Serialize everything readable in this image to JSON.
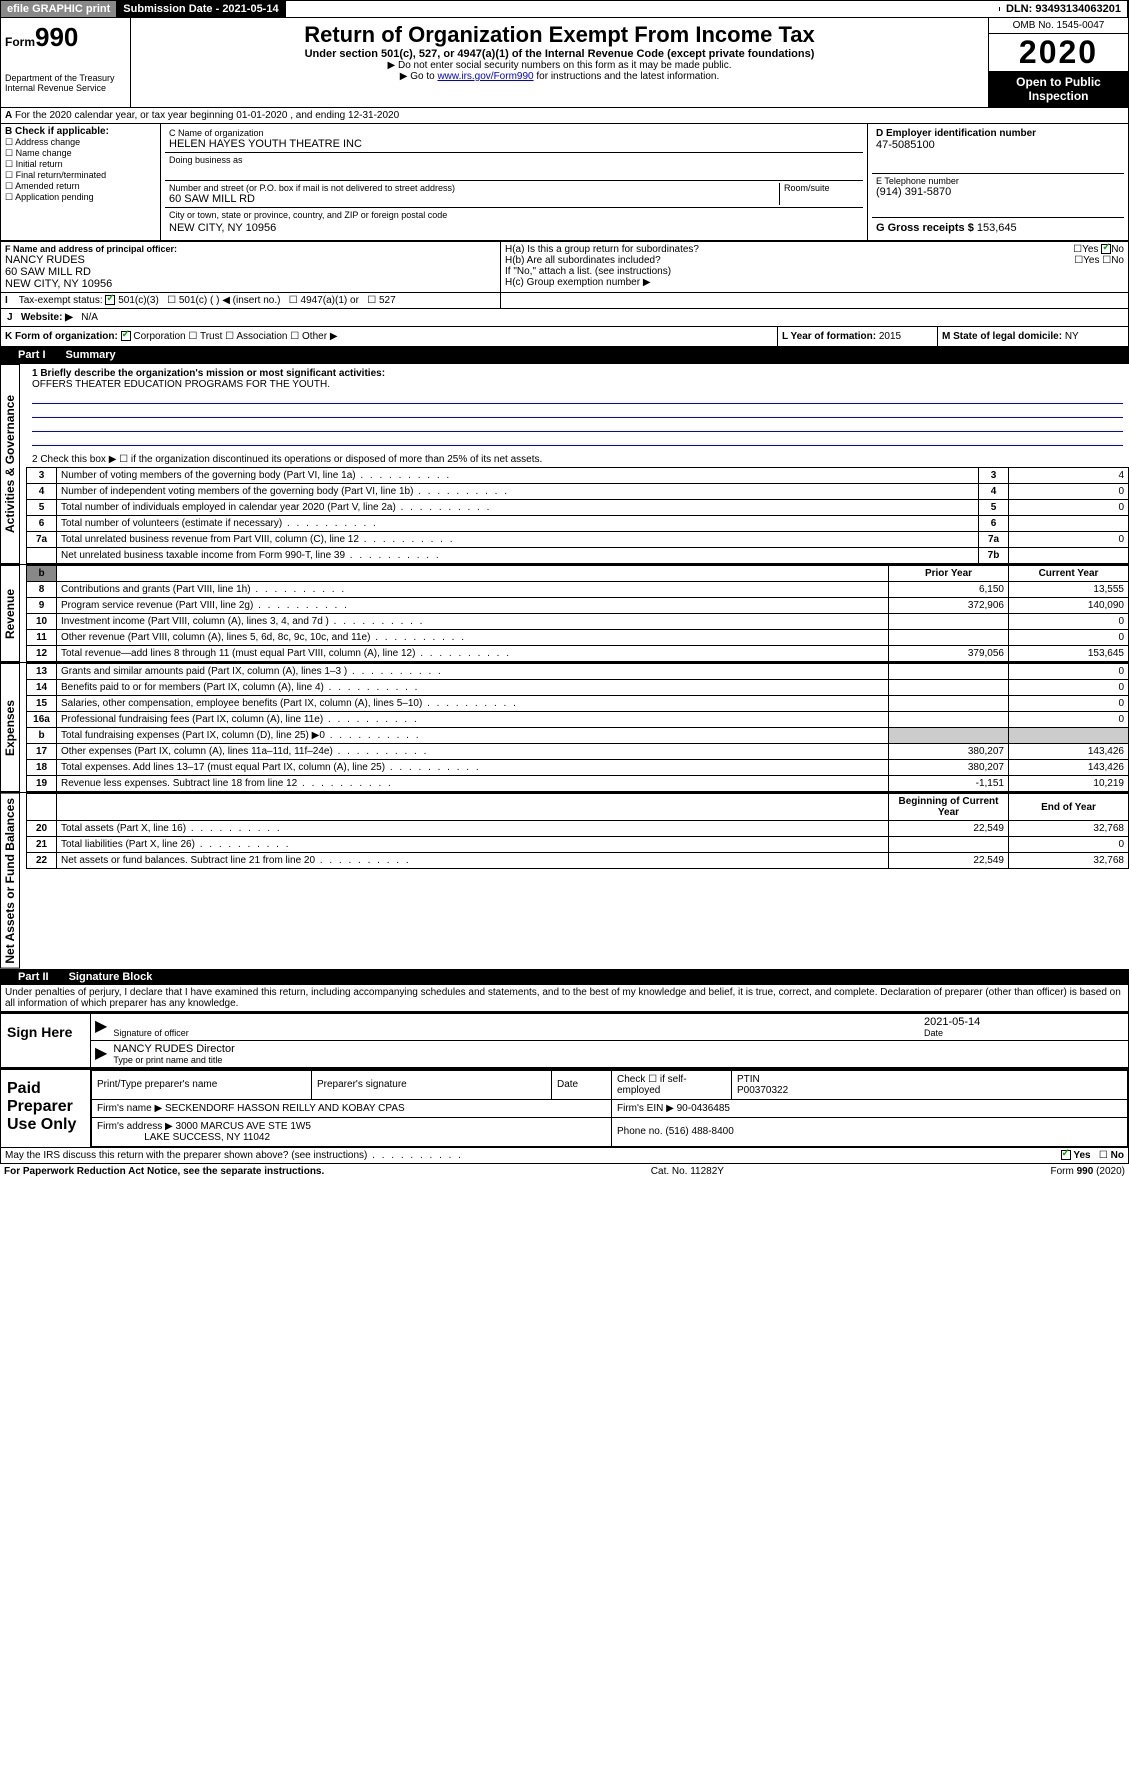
{
  "top": {
    "efile": "efile GRAPHIC print",
    "sub_label": "Submission Date - 2021-05-14",
    "dln_label": "DLN: 93493134063201"
  },
  "header": {
    "form_prefix": "Form",
    "form_num": "990",
    "dept": "Department of the Treasury",
    "irs": "Internal Revenue Service",
    "title": "Return of Organization Exempt From Income Tax",
    "sub": "Under section 501(c), 527, or 4947(a)(1) of the Internal Revenue Code (except private foundations)",
    "note1": "▶ Do not enter social security numbers on this form as it may be made public.",
    "note2_pre": "▶ Go to ",
    "note2_link": "www.irs.gov/Form990",
    "note2_post": " for instructions and the latest information.",
    "omb": "OMB No. 1545-0047",
    "year": "2020",
    "open": "Open to Public Inspection"
  },
  "a": {
    "line": "For the 2020 calendar year, or tax year beginning 01-01-2020   , and ending 12-31-2020"
  },
  "b": {
    "heading": "B Check if applicable:",
    "opts": [
      "Address change",
      "Name change",
      "Initial return",
      "Final return/terminated",
      "Amended return",
      "Application pending"
    ]
  },
  "c": {
    "label": "C Name of organization",
    "name": "HELEN HAYES YOUTH THEATRE INC",
    "dba": "Doing business as",
    "street_label": "Number and street (or P.O. box if mail is not delivered to street address)",
    "room": "Room/suite",
    "street": "60 SAW MILL RD",
    "city_label": "City or town, state or province, country, and ZIP or foreign postal code",
    "city": "NEW CITY, NY  10956"
  },
  "d": {
    "label": "D Employer identification number",
    "value": "47-5085100"
  },
  "e": {
    "label": "E Telephone number",
    "value": "(914) 391-5870"
  },
  "g": {
    "label": "G Gross receipts $",
    "value": "153,645"
  },
  "f": {
    "label": "F  Name and address of principal officer:",
    "name": "NANCY RUDES",
    "street": "60 SAW MILL RD",
    "city": "NEW CITY, NY  10956"
  },
  "h": {
    "a": "H(a)  Is this a group return for subordinates?",
    "b": "H(b)  Are all subordinates included?",
    "note": "If \"No,\" attach a list. (see instructions)",
    "c": "H(c)  Group exemption number ▶"
  },
  "i": {
    "label": "Tax-exempt status:",
    "c3": "501(c)(3)",
    "c": "501(c) (  ) ◀ (insert no.)",
    "a1": "4947(a)(1) or",
    "527": "527"
  },
  "j": {
    "label": "Website: ▶",
    "value": "N/A"
  },
  "k": {
    "label": "K Form of organization:",
    "opts": [
      "Corporation",
      "Trust",
      "Association",
      "Other ▶"
    ]
  },
  "l": {
    "label": "L Year of formation:",
    "value": "2015"
  },
  "m": {
    "label": "M State of legal domicile:",
    "value": "NY"
  },
  "part1": {
    "title": "Part I",
    "sub": "Summary",
    "line1_label": "1  Briefly describe the organization's mission or most significant activities:",
    "line1_value": "OFFERS THEATER EDUCATION PROGRAMS FOR THE YOUTH.",
    "line2": "2   Check this box ▶ ☐  if the organization discontinued its operations or disposed of more than 25% of its net assets.",
    "side_gov": "Activities & Governance",
    "side_rev": "Revenue",
    "side_exp": "Expenses",
    "side_net": "Net Assets or Fund Balances",
    "rows_gov": [
      {
        "n": "3",
        "label": "Number of voting members of the governing body (Part VI, line 1a)",
        "box": "3",
        "val": "4"
      },
      {
        "n": "4",
        "label": "Number of independent voting members of the governing body (Part VI, line 1b)",
        "box": "4",
        "val": "0"
      },
      {
        "n": "5",
        "label": "Total number of individuals employed in calendar year 2020 (Part V, line 2a)",
        "box": "5",
        "val": "0"
      },
      {
        "n": "6",
        "label": "Total number of volunteers (estimate if necessary)",
        "box": "6",
        "val": ""
      },
      {
        "n": "7a",
        "label": "Total unrelated business revenue from Part VIII, column (C), line 12",
        "box": "7a",
        "val": "0"
      },
      {
        "n": "",
        "label": "Net unrelated business taxable income from Form 990-T, line 39",
        "box": "7b",
        "val": ""
      }
    ],
    "cols": {
      "prior": "Prior Year",
      "current": "Current Year"
    },
    "rows_rev": [
      {
        "n": "8",
        "label": "Contributions and grants (Part VIII, line 1h)",
        "p": "6,150",
        "c": "13,555"
      },
      {
        "n": "9",
        "label": "Program service revenue (Part VIII, line 2g)",
        "p": "372,906",
        "c": "140,090"
      },
      {
        "n": "10",
        "label": "Investment income (Part VIII, column (A), lines 3, 4, and 7d )",
        "p": "",
        "c": "0"
      },
      {
        "n": "11",
        "label": "Other revenue (Part VIII, column (A), lines 5, 6d, 8c, 9c, 10c, and 11e)",
        "p": "",
        "c": "0"
      },
      {
        "n": "12",
        "label": "Total revenue—add lines 8 through 11 (must equal Part VIII, column (A), line 12)",
        "p": "379,056",
        "c": "153,645"
      }
    ],
    "rows_exp": [
      {
        "n": "13",
        "label": "Grants and similar amounts paid (Part IX, column (A), lines 1–3 )",
        "p": "",
        "c": "0"
      },
      {
        "n": "14",
        "label": "Benefits paid to or for members (Part IX, column (A), line 4)",
        "p": "",
        "c": "0"
      },
      {
        "n": "15",
        "label": "Salaries, other compensation, employee benefits (Part IX, column (A), lines 5–10)",
        "p": "",
        "c": "0"
      },
      {
        "n": "16a",
        "label": "Professional fundraising fees (Part IX, column (A), line 11e)",
        "p": "",
        "c": "0"
      },
      {
        "n": "b",
        "label": "Total fundraising expenses (Part IX, column (D), line 25) ▶0",
        "p": "__SHADED__",
        "c": "__SHADED__"
      },
      {
        "n": "17",
        "label": "Other expenses (Part IX, column (A), lines 11a–11d, 11f–24e)",
        "p": "380,207",
        "c": "143,426"
      },
      {
        "n": "18",
        "label": "Total expenses. Add lines 13–17 (must equal Part IX, column (A), line 25)",
        "p": "380,207",
        "c": "143,426"
      },
      {
        "n": "19",
        "label": "Revenue less expenses. Subtract line 18 from line 12",
        "p": "-1,151",
        "c": "10,219"
      }
    ],
    "cols_net": {
      "begin": "Beginning of Current Year",
      "end": "End of Year"
    },
    "rows_net": [
      {
        "n": "20",
        "label": "Total assets (Part X, line 16)",
        "p": "22,549",
        "c": "32,768"
      },
      {
        "n": "21",
        "label": "Total liabilities (Part X, line 26)",
        "p": "",
        "c": "0"
      },
      {
        "n": "22",
        "label": "Net assets or fund balances. Subtract line 21 from line 20",
        "p": "22,549",
        "c": "32,768"
      }
    ]
  },
  "part2": {
    "title": "Part II",
    "sub": "Signature Block",
    "declaration": "Under penalties of perjury, I declare that I have examined this return, including accompanying schedules and statements, and to the best of my knowledge and belief, it is true, correct, and complete. Declaration of preparer (other than officer) is based on all information of which preparer has any knowledge."
  },
  "sign": {
    "left": "Sign Here",
    "sig_of_officer": "Signature of officer",
    "date": "2021-05-14",
    "date_label": "Date",
    "name_title": "NANCY RUDES  Director",
    "type_label": "Type or print name and title"
  },
  "paid": {
    "left": "Paid Preparer Use Only",
    "h1": "Print/Type preparer's name",
    "h2": "Preparer's signature",
    "h3": "Date",
    "h4": "Check ☐ if self-employed",
    "h5": "PTIN",
    "ptin": "P00370322",
    "firm_name_label": "Firm's name    ▶",
    "firm_name": "SECKENDORF HASSON REILLY AND KOBAY CPAS",
    "firm_ein_label": "Firm's EIN ▶",
    "firm_ein": "90-0436485",
    "firm_addr_label": "Firm's address ▶",
    "firm_addr1": "3000 MARCUS AVE STE 1W5",
    "firm_addr2": "LAKE SUCCESS, NY  11042",
    "phone_label": "Phone no.",
    "phone": "(516) 488-8400"
  },
  "footer": {
    "discuss": "May the IRS discuss this return with the preparer shown above? (see instructions)",
    "paperwork": "For Paperwork Reduction Act Notice, see the separate instructions.",
    "cat": "Cat. No. 11282Y",
    "form": "Form 990 (2020)"
  },
  "colors": {
    "link": "#0000ee",
    "shaded": "#cccccc"
  }
}
